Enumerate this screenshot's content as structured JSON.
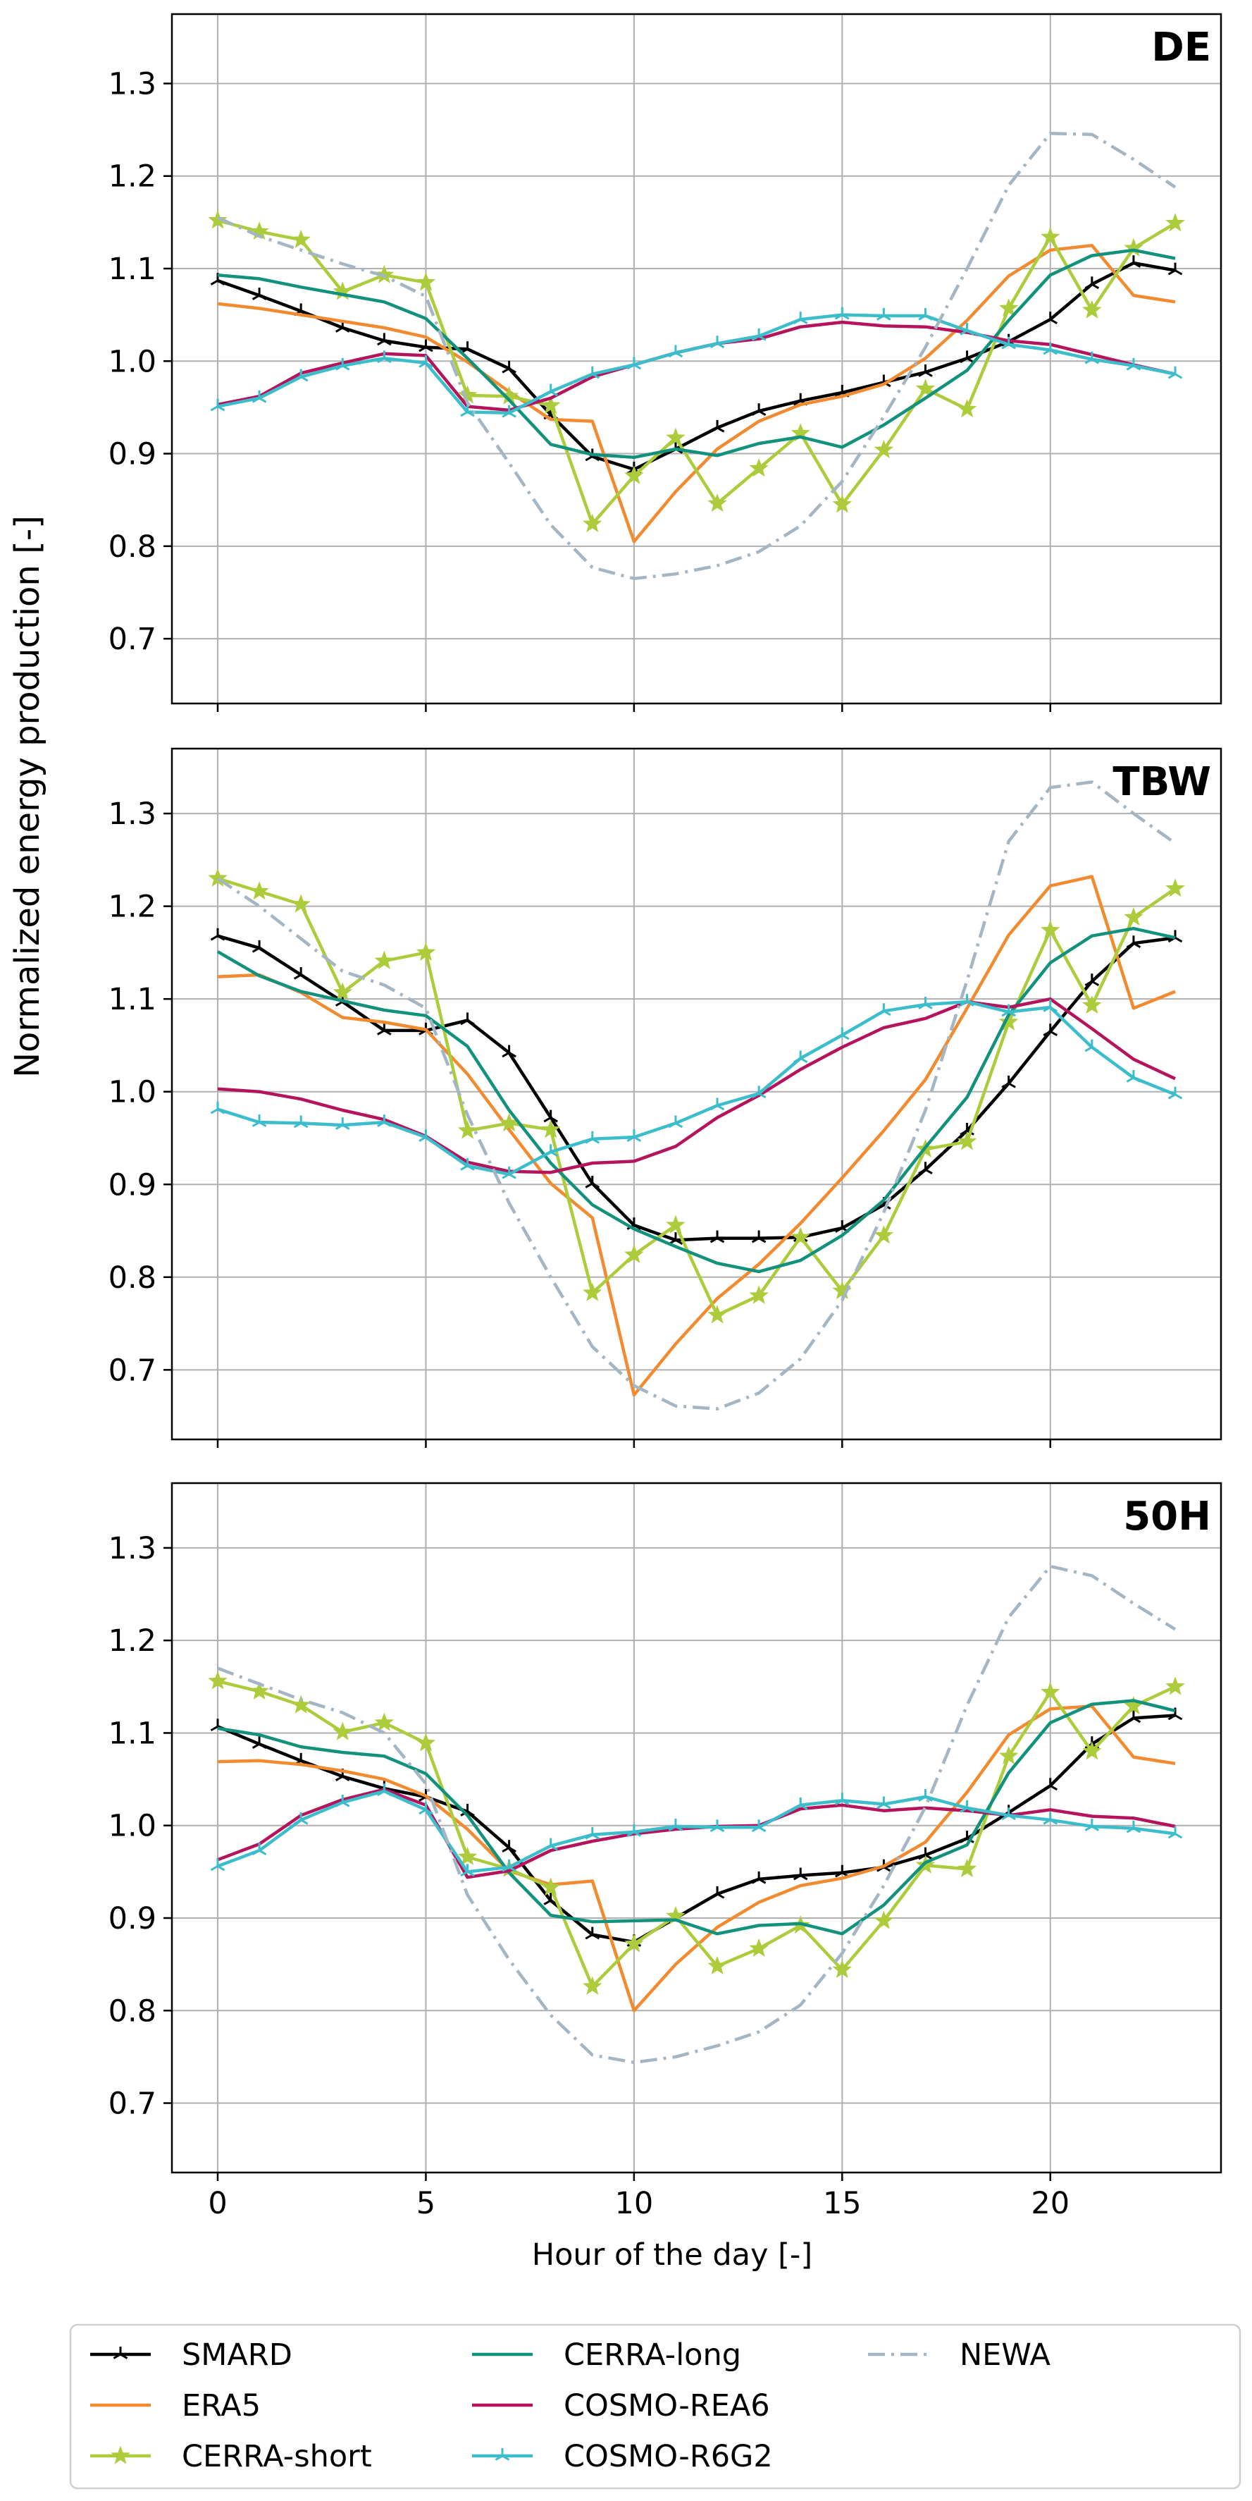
{
  "figure": {
    "ylabel": "Normalized energy production [-]",
    "xlabel": "Hour of the day [-]"
  },
  "series_styles": [
    {
      "name": "SMARD",
      "color": "#000000",
      "marker": "tri",
      "dash": "solid"
    },
    {
      "name": "ERA5",
      "color": "#f28a2f",
      "marker": "none",
      "dash": "solid"
    },
    {
      "name": "CERRA-short",
      "color": "#adcc3b",
      "marker": "star",
      "dash": "solid"
    },
    {
      "name": "CERRA-long",
      "color": "#12917d",
      "marker": "none",
      "dash": "solid"
    },
    {
      "name": "COSMO-REA6",
      "color": "#b5135b",
      "marker": "none",
      "dash": "solid"
    },
    {
      "name": "COSMO-R6G2",
      "color": "#3bbdcc",
      "marker": "tri",
      "dash": "solid"
    },
    {
      "name": "NEWA",
      "color": "#a4b6c4",
      "marker": "none",
      "dash": "dashdot"
    }
  ],
  "legend": {
    "position": "bottom-center",
    "columns": 3,
    "items": [
      "SMARD",
      "ERA5",
      "CERRA-short",
      "CERRA-long",
      "COSMO-REA6",
      "COSMO-R6G2",
      "NEWA"
    ]
  },
  "chart_data": [
    {
      "type": "line",
      "title": "DE",
      "xlabel": "",
      "ylabel": "Normalized energy production [-]",
      "xlim": [
        -1.1,
        24.1
      ],
      "ylim": [
        0.63,
        1.375
      ],
      "xticks": [
        0,
        5,
        10,
        15,
        20
      ],
      "xtick_labels": [],
      "yticks": [
        0.7,
        0.8,
        0.9,
        1.0,
        1.1,
        1.2,
        1.3
      ],
      "ytick_labels": [
        "0.7",
        "0.8",
        "0.9",
        "1.0",
        "1.1",
        "1.2",
        "1.3"
      ],
      "grid": true,
      "x": [
        0,
        1,
        2,
        3,
        4,
        5,
        6,
        7,
        8,
        9,
        10,
        11,
        12,
        13,
        14,
        15,
        16,
        17,
        18,
        19,
        20,
        21,
        22,
        23
      ],
      "series": [
        {
          "name": "SMARD",
          "values": [
            1.087,
            1.071,
            1.054,
            1.036,
            1.022,
            1.015,
            1.013,
            0.992,
            0.942,
            0.897,
            0.883,
            0.905,
            0.928,
            0.946,
            0.957,
            0.966,
            0.977,
            0.988,
            1.003,
            1.021,
            1.045,
            1.083,
            1.106,
            1.098
          ]
        },
        {
          "name": "ERA5",
          "values": [
            1.062,
            1.057,
            1.05,
            1.043,
            1.036,
            1.026,
            0.999,
            0.967,
            0.937,
            0.935,
            0.805,
            0.859,
            0.905,
            0.935,
            0.953,
            0.962,
            0.975,
            1.003,
            1.044,
            1.092,
            1.12,
            1.125,
            1.071,
            1.064
          ]
        },
        {
          "name": "CERRA-short",
          "values": [
            1.152,
            1.14,
            1.131,
            1.075,
            1.093,
            1.085,
            0.963,
            0.962,
            0.952,
            0.824,
            0.876,
            0.917,
            0.846,
            0.884,
            0.922,
            0.845,
            0.904,
            0.97,
            0.948,
            1.057,
            1.134,
            1.055,
            1.122,
            1.149
          ]
        },
        {
          "name": "CERRA-long",
          "values": [
            1.093,
            1.089,
            1.08,
            1.072,
            1.064,
            1.046,
            1.003,
            0.958,
            0.91,
            0.899,
            0.896,
            0.905,
            0.898,
            0.911,
            0.918,
            0.907,
            0.931,
            0.96,
            0.99,
            1.044,
            1.093,
            1.114,
            1.12,
            1.111
          ]
        },
        {
          "name": "COSMO-REA6",
          "values": [
            0.953,
            0.962,
            0.987,
            0.998,
            1.008,
            1.006,
            0.951,
            0.947,
            0.96,
            0.983,
            0.996,
            1.009,
            1.019,
            1.024,
            1.037,
            1.042,
            1.038,
            1.037,
            1.031,
            1.022,
            1.018,
            1.007,
            0.996,
            0.986
          ]
        },
        {
          "name": "COSMO-R6G2",
          "values": [
            0.951,
            0.96,
            0.983,
            0.995,
            1.003,
            0.998,
            0.945,
            0.944,
            0.967,
            0.986,
            0.996,
            1.009,
            1.019,
            1.027,
            1.045,
            1.05,
            1.049,
            1.049,
            1.033,
            1.018,
            1.012,
            1.002,
            0.995,
            0.986
          ]
        },
        {
          "name": "NEWA",
          "values": [
            1.155,
            1.135,
            1.12,
            1.105,
            1.092,
            1.07,
            0.955,
            0.89,
            0.823,
            0.777,
            0.765,
            0.77,
            0.779,
            0.794,
            0.822,
            0.87,
            0.94,
            1.015,
            1.1,
            1.19,
            1.246,
            1.245,
            1.218,
            1.188
          ]
        }
      ]
    },
    {
      "type": "line",
      "title": "TBW",
      "xlabel": "",
      "ylabel": "Normalized energy production [-]",
      "xlim": [
        -1.1,
        24.1
      ],
      "ylim": [
        0.625,
        1.37
      ],
      "xticks": [
        0,
        5,
        10,
        15,
        20
      ],
      "xtick_labels": [],
      "yticks": [
        0.7,
        0.8,
        0.9,
        1.0,
        1.1,
        1.2,
        1.3
      ],
      "ytick_labels": [
        "0.7",
        "0.8",
        "0.9",
        "1.0",
        "1.1",
        "1.2",
        "1.3"
      ],
      "grid": true,
      "x": [
        0,
        1,
        2,
        3,
        4,
        5,
        6,
        7,
        8,
        9,
        10,
        11,
        12,
        13,
        14,
        15,
        16,
        17,
        18,
        19,
        20,
        21,
        22,
        23
      ],
      "series": [
        {
          "name": "SMARD",
          "values": [
            1.168,
            1.155,
            1.126,
            1.097,
            1.066,
            1.066,
            1.077,
            1.042,
            0.972,
            0.901,
            0.856,
            0.84,
            0.842,
            0.842,
            0.843,
            0.853,
            0.878,
            0.916,
            0.958,
            1.009,
            1.065,
            1.119,
            1.16,
            1.166
          ]
        },
        {
          "name": "ERA5",
          "values": [
            1.124,
            1.126,
            1.107,
            1.08,
            1.075,
            1.067,
            1.019,
            0.959,
            0.901,
            0.864,
            0.673,
            0.728,
            0.777,
            0.814,
            0.858,
            0.907,
            0.958,
            1.013,
            1.09,
            1.169,
            1.222,
            1.232,
            1.09,
            1.108
          ]
        },
        {
          "name": "CERRA-short",
          "values": [
            1.23,
            1.216,
            1.202,
            1.107,
            1.141,
            1.15,
            0.958,
            0.966,
            0.959,
            0.783,
            0.824,
            0.856,
            0.759,
            0.78,
            0.843,
            0.785,
            0.845,
            0.938,
            0.946,
            1.075,
            1.174,
            1.093,
            1.188,
            1.219
          ]
        },
        {
          "name": "CERRA-long",
          "values": [
            1.151,
            1.125,
            1.108,
            1.098,
            1.088,
            1.082,
            1.049,
            0.98,
            0.923,
            0.878,
            0.852,
            0.833,
            0.815,
            0.806,
            0.818,
            0.845,
            0.883,
            0.94,
            0.994,
            1.083,
            1.139,
            1.168,
            1.176,
            1.166
          ]
        },
        {
          "name": "COSMO-REA6",
          "values": [
            1.003,
            1.0,
            0.992,
            0.98,
            0.97,
            0.952,
            0.924,
            0.914,
            0.913,
            0.923,
            0.925,
            0.941,
            0.972,
            0.996,
            1.024,
            1.048,
            1.069,
            1.079,
            1.097,
            1.091,
            1.1,
            1.068,
            1.035,
            1.014
          ]
        },
        {
          "name": "COSMO-R6G2",
          "values": [
            0.981,
            0.967,
            0.966,
            0.964,
            0.967,
            0.951,
            0.92,
            0.911,
            0.935,
            0.949,
            0.951,
            0.966,
            0.985,
            0.998,
            1.036,
            1.061,
            1.087,
            1.094,
            1.097,
            1.086,
            1.091,
            1.048,
            1.015,
            0.997
          ]
        },
        {
          "name": "NEWA",
          "values": [
            1.23,
            1.2,
            1.165,
            1.13,
            1.115,
            1.09,
            0.975,
            0.88,
            0.8,
            0.725,
            0.683,
            0.661,
            0.658,
            0.675,
            0.712,
            0.775,
            0.87,
            0.98,
            1.12,
            1.27,
            1.328,
            1.334,
            1.3,
            1.268
          ]
        }
      ]
    },
    {
      "type": "line",
      "title": "50H",
      "xlabel": "Hour of the day [-]",
      "ylabel": "Normalized energy production [-]",
      "xlim": [
        -1.1,
        24.1
      ],
      "ylim": [
        0.625,
        1.37
      ],
      "xticks": [
        0,
        5,
        10,
        15,
        20
      ],
      "xtick_labels": [
        "0",
        "5",
        "10",
        "15",
        "20"
      ],
      "yticks": [
        0.7,
        0.8,
        0.9,
        1.0,
        1.1,
        1.2,
        1.3
      ],
      "ytick_labels": [
        "0.7",
        "0.8",
        "0.9",
        "1.0",
        "1.1",
        "1.2",
        "1.3"
      ],
      "grid": true,
      "x": [
        0,
        1,
        2,
        3,
        4,
        5,
        6,
        7,
        8,
        9,
        10,
        11,
        12,
        13,
        14,
        15,
        16,
        17,
        18,
        19,
        20,
        21,
        22,
        23
      ],
      "series": [
        {
          "name": "SMARD",
          "values": [
            1.107,
            1.088,
            1.07,
            1.053,
            1.04,
            1.031,
            1.015,
            0.976,
            0.919,
            0.882,
            0.874,
            0.9,
            0.926,
            0.942,
            0.946,
            0.949,
            0.955,
            0.968,
            0.986,
            1.014,
            1.043,
            1.088,
            1.116,
            1.119
          ]
        },
        {
          "name": "ERA5",
          "values": [
            1.069,
            1.07,
            1.066,
            1.059,
            1.05,
            1.032,
            0.996,
            0.951,
            0.936,
            0.94,
            0.8,
            0.85,
            0.89,
            0.917,
            0.935,
            0.943,
            0.956,
            0.982,
            1.036,
            1.098,
            1.126,
            1.129,
            1.074,
            1.067
          ]
        },
        {
          "name": "CERRA-short",
          "values": [
            1.156,
            1.145,
            1.13,
            1.101,
            1.111,
            1.089,
            0.966,
            0.953,
            0.933,
            0.826,
            0.872,
            0.902,
            0.848,
            0.867,
            0.892,
            0.844,
            0.897,
            0.957,
            0.953,
            1.075,
            1.144,
            1.08,
            1.129,
            1.15
          ]
        },
        {
          "name": "CERRA-long",
          "values": [
            1.105,
            1.098,
            1.085,
            1.079,
            1.075,
            1.056,
            1.011,
            0.949,
            0.903,
            0.896,
            0.897,
            0.898,
            0.883,
            0.892,
            0.894,
            0.883,
            0.914,
            0.96,
            0.979,
            1.057,
            1.111,
            1.131,
            1.135,
            1.124
          ]
        },
        {
          "name": "COSMO-REA6",
          "values": [
            0.963,
            0.98,
            1.011,
            1.028,
            1.039,
            1.022,
            0.944,
            0.951,
            0.973,
            0.983,
            0.991,
            0.996,
            0.999,
            1.0,
            1.018,
            1.022,
            1.016,
            1.019,
            1.016,
            1.011,
            1.017,
            1.01,
            1.008,
            0.999
          ]
        },
        {
          "name": "COSMO-R6G2",
          "values": [
            0.956,
            0.973,
            1.006,
            1.025,
            1.037,
            1.017,
            0.95,
            0.955,
            0.978,
            0.99,
            0.993,
            0.999,
            0.998,
            0.998,
            1.022,
            1.027,
            1.023,
            1.031,
            1.019,
            1.011,
            1.006,
            0.999,
            0.997,
            0.991
          ]
        },
        {
          "name": "NEWA",
          "values": [
            1.17,
            1.153,
            1.136,
            1.122,
            1.1,
            1.045,
            0.925,
            0.855,
            0.795,
            0.752,
            0.744,
            0.75,
            0.762,
            0.777,
            0.806,
            0.862,
            0.935,
            1.02,
            1.13,
            1.225,
            1.28,
            1.27,
            1.24,
            1.212
          ]
        }
      ]
    }
  ]
}
